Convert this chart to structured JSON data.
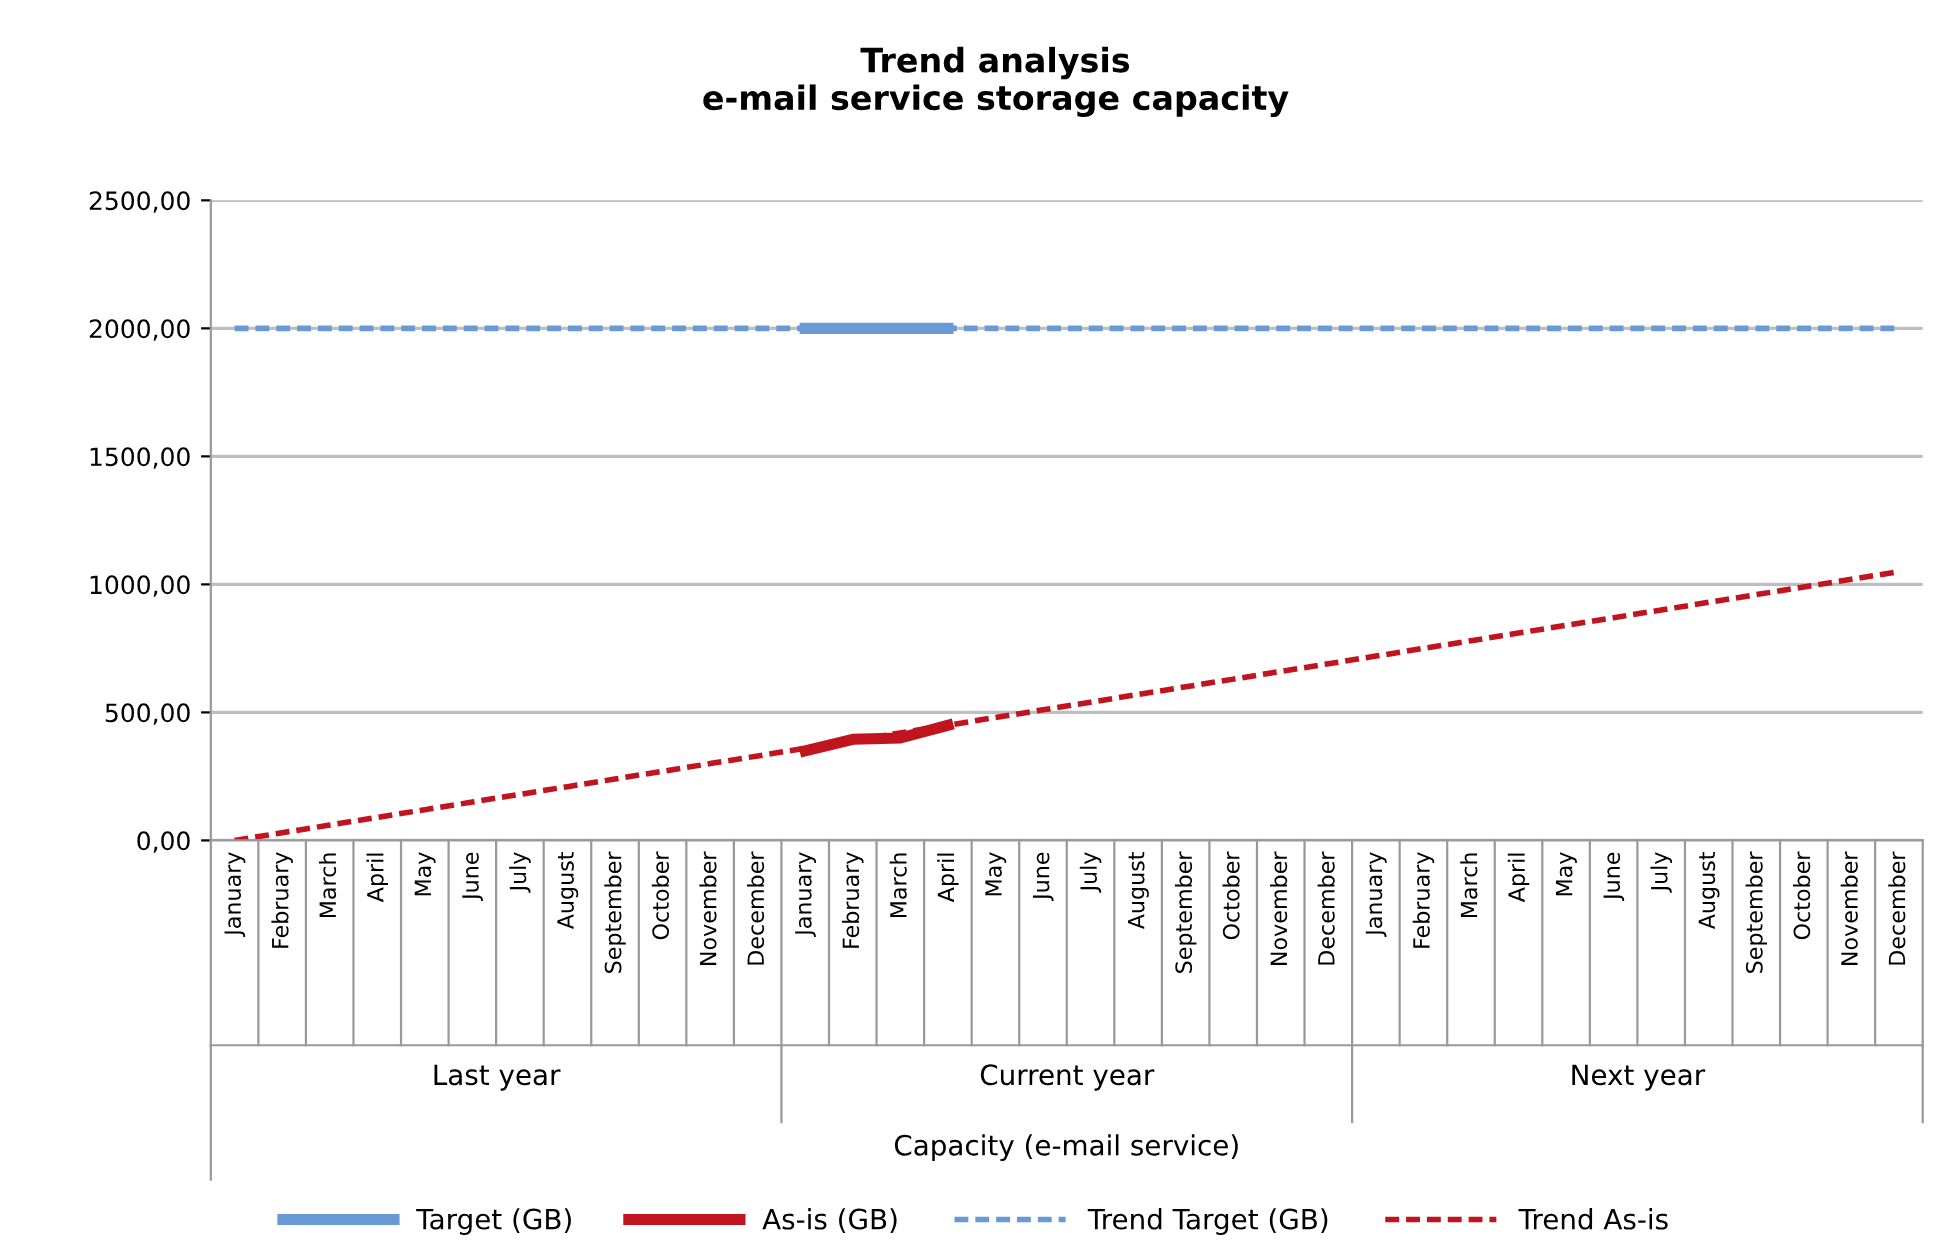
{
  "chart_data": {
    "type": "line",
    "title": "Trend analysis\ne-mail service storage capacity",
    "categories": [
      "January",
      "February",
      "March",
      "April",
      "May",
      "June",
      "July",
      "August",
      "September",
      "October",
      "November",
      "December",
      "January",
      "February",
      "March",
      "April",
      "May",
      "June",
      "July",
      "August",
      "September",
      "October",
      "November",
      "December",
      "January",
      "February",
      "March",
      "April",
      "May",
      "June",
      "July",
      "August",
      "September",
      "October",
      "November",
      "December"
    ],
    "series": [
      {
        "name": "Target (GB)",
        "color": "#6a9ad6",
        "line_style": "solid",
        "values": [
          null,
          null,
          null,
          null,
          null,
          null,
          null,
          null,
          null,
          null,
          null,
          null,
          2000,
          2000,
          2000,
          2000,
          null,
          null,
          null,
          null,
          null,
          null,
          null,
          null,
          null,
          null,
          null,
          null,
          null,
          null,
          null,
          null,
          null,
          null,
          null,
          null
        ]
      },
      {
        "name": "As-is (GB)",
        "color": "#c0141e",
        "line_style": "solid",
        "values": [
          null,
          null,
          null,
          null,
          null,
          null,
          null,
          null,
          null,
          null,
          null,
          null,
          350,
          395,
          400,
          450,
          null,
          null,
          null,
          null,
          null,
          null,
          null,
          null,
          null,
          null,
          null,
          null,
          null,
          null,
          null,
          null,
          null,
          null,
          null,
          null
        ]
      },
      {
        "name": "Trend Target (GB)",
        "color": "#6a9ad6",
        "line_style": "dashed",
        "values": [
          2000,
          2000,
          2000,
          2000,
          2000,
          2000,
          2000,
          2000,
          2000,
          2000,
          2000,
          2000,
          2000,
          2000,
          2000,
          2000,
          2000,
          2000,
          2000,
          2000,
          2000,
          2000,
          2000,
          2000,
          2000,
          2000,
          2000,
          2000,
          2000,
          2000,
          2000,
          2000,
          2000,
          2000,
          2000,
          2000
        ]
      },
      {
        "name": "Trend As-is",
        "color": "#c0141e",
        "line_style": "dashed",
        "values": [
          0,
          30,
          60,
          90,
          120,
          150,
          180,
          210,
          240,
          270,
          300,
          330,
          360,
          390,
          420,
          450,
          480,
          510,
          540,
          570,
          600,
          630,
          660,
          690,
          720,
          750,
          780,
          810,
          840,
          870,
          900,
          930,
          960,
          990,
          1020,
          1050
        ]
      }
    ],
    "annotations": [
      "Last year",
      "Current year",
      "Next year",
      "Capacity (e-mail service)"
    ],
    "ylim": [
      0,
      2500
    ],
    "yticks": [
      {
        "value": 0,
        "label": "0,00"
      },
      {
        "value": 500,
        "label": "500,00"
      },
      {
        "value": 1000,
        "label": "1000,00"
      },
      {
        "value": 1500,
        "label": "1500,00"
      },
      {
        "value": 2000,
        "label": "2000,00"
      },
      {
        "value": 2500,
        "label": "2500,00"
      }
    ],
    "grid": "y",
    "legend": "bottom",
    "marker": "none"
  }
}
